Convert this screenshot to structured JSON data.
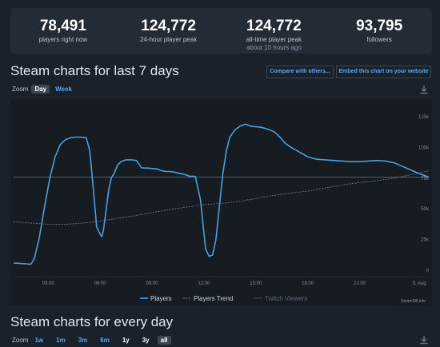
{
  "stats": [
    {
      "value": "78,491",
      "label": "players right now",
      "sub": ""
    },
    {
      "value": "124,772",
      "label": "24-hour player peak",
      "sub": ""
    },
    {
      "value": "124,772",
      "label": "all-time player peak",
      "sub": "about 10 hours ago"
    },
    {
      "value": "93,795",
      "label": "followers",
      "sub": ""
    }
  ],
  "section1": {
    "title": "Steam charts for last 7 days",
    "compare_label": "Compare with others...",
    "embed_label": "Embed this chart on your website",
    "zoom_label": "Zoom",
    "zoom_options": [
      "Day",
      "Week"
    ],
    "zoom_active": "Day"
  },
  "section2": {
    "title": "Steam charts for every day",
    "zoom_label": "Zoom",
    "zoom_options": [
      "1w",
      "1m",
      "3m",
      "6m",
      "1y",
      "3y",
      "all"
    ],
    "zoom_active": "all"
  },
  "credit": "SteamDB.info",
  "colors": {
    "players": "#4a9fdc",
    "trend": "#6b7480",
    "twitch": "#3f4650",
    "ref_line": "#5a6470"
  },
  "chart_data": {
    "type": "line",
    "x_ticks": [
      "03:00",
      "06:00",
      "09:00",
      "12:00",
      "15:00",
      "18:00",
      "21:00",
      "9. Aug"
    ],
    "y_ticks": [
      "0",
      "25k",
      "50k",
      "75k",
      "100k",
      "125k"
    ],
    "ylim": [
      0,
      138000
    ],
    "xlim": [
      0,
      24
    ],
    "reference_value": 78491,
    "legend": [
      "Players",
      "Players Trend",
      "Twitch Viewers"
    ],
    "legend_position": "bottom-center",
    "series": [
      {
        "name": "Players",
        "x": [
          0,
          0.5,
          1,
          1.2,
          1.5,
          1.8,
          2.1,
          2.4,
          2.7,
          3.0,
          3.3,
          3.6,
          3.9,
          4.2,
          4.4,
          4.6,
          4.8,
          5.0,
          5.1,
          5.2,
          5.35,
          5.5,
          5.65,
          5.8,
          6.0,
          6.2,
          6.5,
          6.8,
          7.1,
          7.4,
          7.7,
          8.0,
          8.3,
          8.6,
          8.8,
          9.0,
          9.3,
          9.6,
          9.9,
          10.2,
          10.5,
          10.8,
          11.1,
          11.3,
          11.5,
          11.7,
          11.9,
          12.1,
          12.3,
          12.5,
          12.8,
          13.1,
          13.4,
          13.7,
          14.0,
          14.3,
          14.55,
          14.8,
          15.1,
          15.4,
          15.7,
          16.0,
          16.5,
          17.0,
          17.5,
          18.0,
          18.5,
          19.0,
          19.5,
          20.0,
          20.5,
          21.0,
          21.5,
          22.0,
          22.5,
          23.0,
          23.5,
          24.0
        ],
        "y": [
          8500,
          8000,
          7500,
          12000,
          30000,
          55000,
          78000,
          95000,
          105000,
          109000,
          110500,
          111000,
          111000,
          110500,
          100000,
          70000,
          38000,
          32000,
          30000,
          36000,
          52000,
          68000,
          78000,
          81000,
          88000,
          91000,
          92500,
          92500,
          92000,
          86000,
          85800,
          85500,
          85000,
          83500,
          83000,
          83000,
          82500,
          81500,
          80500,
          79000,
          79000,
          60000,
          20000,
          14000,
          15000,
          28000,
          55000,
          82000,
          100000,
          111000,
          117000,
          120000,
          121500,
          120000,
          119500,
          119000,
          118000,
          117000,
          115000,
          111000,
          106000,
          103000,
          99000,
          95000,
          93000,
          92500,
          92000,
          91500,
          91000,
          91000,
          91500,
          92000,
          91500,
          90000,
          87000,
          84000,
          81000,
          78491
        ]
      },
      {
        "name": "Players Trend",
        "x": [
          0,
          1,
          2,
          3,
          4,
          5,
          6,
          7,
          8,
          9,
          10,
          11,
          12,
          13,
          14,
          15,
          16,
          17,
          18,
          19,
          20,
          21,
          22,
          23,
          24
        ],
        "y": [
          42000,
          41000,
          40000,
          40000,
          41000,
          42500,
          45000,
          47000,
          49500,
          52000,
          54000,
          56000,
          57000,
          58500,
          61000,
          63500,
          65500,
          67000,
          69500,
          72000,
          74000,
          75500,
          77500,
          80500,
          83500
        ]
      },
      {
        "name": "Twitch Viewers",
        "x": [],
        "y": []
      }
    ]
  }
}
